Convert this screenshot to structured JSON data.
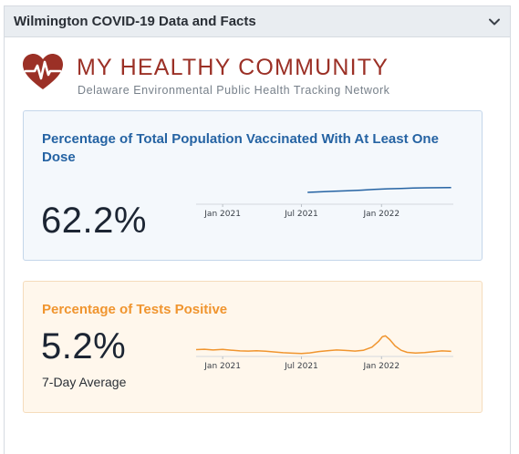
{
  "panel": {
    "title": "Wilmington COVID-19 Data and Facts",
    "chevron_icon": "chevron-down-icon"
  },
  "logo": {
    "icon": "heart-pulse-icon",
    "title": "MY HEALTHY COMMUNITY",
    "subtitle": "Delaware Environmental Public Health Tracking Network",
    "color": "#9b3026"
  },
  "cards": [
    {
      "title": "Percentage of Total Population Vaccinated With At Least One Dose",
      "value": "62.2%",
      "note": "",
      "accent": "#2563a3"
    },
    {
      "title": "Percentage of Tests Positive",
      "value": "5.2%",
      "note": "7-Day Average",
      "accent": "#f0952f"
    }
  ],
  "chart_data": [
    {
      "type": "line",
      "ticks": [
        {
          "label": "Jan 2021",
          "date": "2021-01-01"
        },
        {
          "label": "Jul 2021",
          "date": "2021-07-01"
        },
        {
          "label": "Jan 2022",
          "date": "2022-01-01"
        }
      ],
      "xlim": [
        "2020-11-01",
        "2022-06-15"
      ],
      "ylim": [
        40,
        70
      ],
      "series": [
        {
          "points": [
            [
              "2021-07-15",
              55.0
            ],
            [
              "2021-08-15",
              55.8
            ],
            [
              "2021-09-15",
              56.6
            ],
            [
              "2021-10-15",
              57.4
            ],
            [
              "2021-11-15",
              58.3
            ],
            [
              "2021-12-15",
              59.3
            ],
            [
              "2022-01-15",
              60.3
            ],
            [
              "2022-02-15",
              60.9
            ],
            [
              "2022-03-15",
              61.4
            ],
            [
              "2022-04-15",
              61.8
            ],
            [
              "2022-05-15",
              62.0
            ],
            [
              "2022-06-10",
              62.2
            ]
          ],
          "color": "#2563a3"
        }
      ]
    },
    {
      "type": "line",
      "ticks": [
        {
          "label": "Jan 2021",
          "date": "2021-01-01"
        },
        {
          "label": "Jul 2021",
          "date": "2021-07-01"
        },
        {
          "label": "Jan 2022",
          "date": "2022-01-01"
        }
      ],
      "xlim": [
        "2020-11-01",
        "2022-06-15"
      ],
      "ylim": [
        0,
        32
      ],
      "series": [
        {
          "points": [
            [
              "2020-11-01",
              8.0
            ],
            [
              "2020-11-20",
              8.6
            ],
            [
              "2020-12-10",
              7.4
            ],
            [
              "2021-01-01",
              8.4
            ],
            [
              "2021-01-20",
              7.2
            ],
            [
              "2021-02-10",
              6.0
            ],
            [
              "2021-03-01",
              5.6
            ],
            [
              "2021-03-20",
              6.3
            ],
            [
              "2021-04-10",
              5.4
            ],
            [
              "2021-05-01",
              4.2
            ],
            [
              "2021-05-20",
              3.1
            ],
            [
              "2021-06-10",
              2.3
            ],
            [
              "2021-07-01",
              1.8
            ],
            [
              "2021-07-20",
              2.7
            ],
            [
              "2021-08-10",
              4.9
            ],
            [
              "2021-09-01",
              6.4
            ],
            [
              "2021-09-20",
              7.4
            ],
            [
              "2021-10-10",
              6.7
            ],
            [
              "2021-11-01",
              5.6
            ],
            [
              "2021-11-20",
              6.9
            ],
            [
              "2021-12-10",
              12.0
            ],
            [
              "2021-12-25",
              21.0
            ],
            [
              "2022-01-03",
              28.5
            ],
            [
              "2022-01-10",
              30.0
            ],
            [
              "2022-01-20",
              24.0
            ],
            [
              "2022-02-01",
              14.0
            ],
            [
              "2022-02-15",
              7.0
            ],
            [
              "2022-03-01",
              3.6
            ],
            [
              "2022-03-20",
              2.6
            ],
            [
              "2022-04-10",
              3.3
            ],
            [
              "2022-05-01",
              4.6
            ],
            [
              "2022-05-20",
              5.9
            ],
            [
              "2022-06-10",
              5.2
            ]
          ],
          "color": "#f0952f"
        }
      ]
    }
  ]
}
